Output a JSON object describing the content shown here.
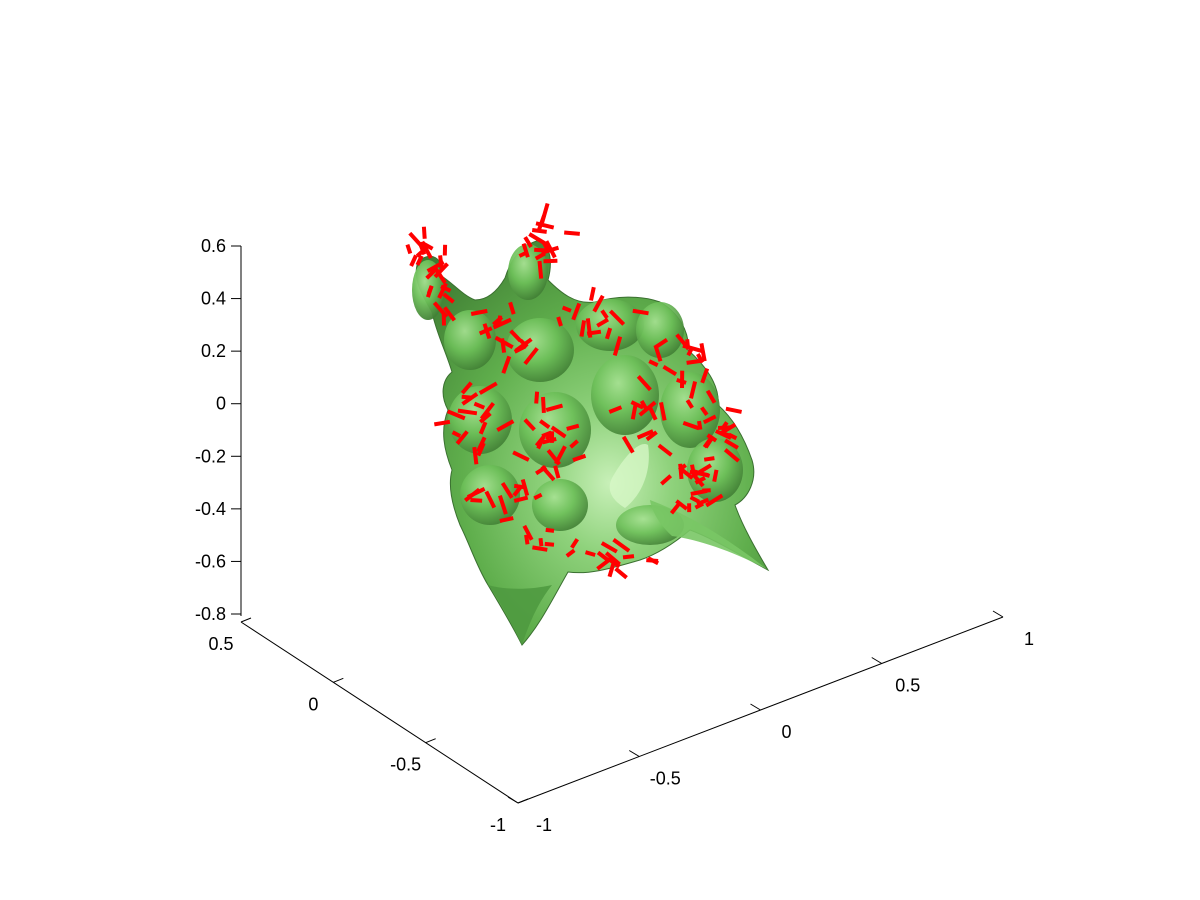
{
  "chart_data": {
    "type": "surface3d",
    "title": "",
    "xlabel": "",
    "ylabel": "",
    "zlabel": "",
    "grid": false,
    "axes": {
      "x": {
        "range": [
          -1,
          1
        ],
        "ticks": [
          -1,
          -0.5,
          0,
          0.5,
          1
        ],
        "tick_labels": [
          "-1",
          "-0.5",
          "0",
          "0.5",
          "1"
        ]
      },
      "y": {
        "range": [
          -1,
          0.5
        ],
        "ticks": [
          -1,
          -0.5,
          0,
          0.5
        ],
        "tick_labels": [
          "-1",
          "-0.5",
          "0",
          "0.5"
        ]
      },
      "z": {
        "range": [
          -0.8,
          0.6
        ],
        "ticks": [
          -0.8,
          -0.6,
          -0.4,
          -0.2,
          0,
          0.2,
          0.4,
          0.6
        ],
        "tick_labels": [
          "-0.8",
          "-0.6",
          "-0.4",
          "-0.2",
          "0",
          "0.2",
          "0.4",
          "0.6"
        ]
      }
    },
    "series": [
      {
        "kind": "isosurface",
        "color": "#66bb55"
      },
      {
        "kind": "normal-vectors",
        "color": "#ff0000"
      }
    ]
  }
}
